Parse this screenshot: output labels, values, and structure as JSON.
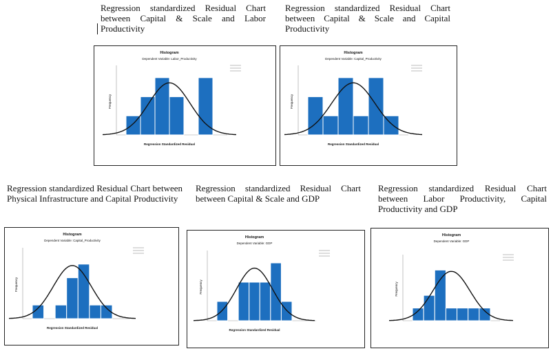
{
  "captions": [
    "Regression standardized Residual Chart between Capital & Scale and Labor Productivity",
    "Regression standardized Residual Chart between Capital & Scale and Capital Productivity",
    "Regression standardized Residual Chart between Physical Infrastructure and Capital Productivity",
    "Regression standardized Residual Chart between Capital & Scale and GDP",
    "Regression standardized Residual Chart between Labor Productivity, Capital Productivity and GDP"
  ],
  "colors": {
    "bar": "#1d6fbf",
    "bar_edge": "#ffffff",
    "curve": "#111111",
    "frame": "#222222"
  },
  "chart_data": [
    {
      "type": "bar",
      "title": "Histogram",
      "subtitle": "Dependent Variable: Labor_Productivity",
      "xlabel": "Regression Standardized Residual",
      "ylabel": "Frequency",
      "values": [
        1,
        2,
        3,
        2,
        0,
        3
      ],
      "ylim": [
        0,
        3.5
      ],
      "normal_curve": true
    },
    {
      "type": "bar",
      "title": "Histogram",
      "subtitle": "Dependent Variable: Capital_Productivity",
      "xlabel": "Regression Standardized Residual",
      "ylabel": "Frequency",
      "values": [
        2,
        1,
        3,
        1,
        3,
        1
      ],
      "ylim": [
        0,
        3.5
      ],
      "normal_curve": true
    },
    {
      "type": "bar",
      "title": "Histogram",
      "subtitle": "Dependent Variable: Capital_Productivity",
      "xlabel": "Regression Standardized Residual",
      "ylabel": "Frequency",
      "values": [
        1,
        0,
        1,
        3,
        4,
        1,
        1
      ],
      "ylim": [
        0,
        5
      ],
      "normal_curve": true
    },
    {
      "type": "bar",
      "title": "Histogram",
      "subtitle": "Dependent Variable: GDP",
      "xlabel": "Regression Standardized Residual",
      "ylabel": "Frequency",
      "values": [
        1,
        0,
        2,
        2,
        2,
        3,
        1
      ],
      "ylim": [
        0,
        3.5
      ],
      "normal_curve": true
    },
    {
      "type": "bar",
      "title": "Histogram",
      "subtitle": "Dependent Variable: GDP",
      "xlabel": "",
      "ylabel": "Frequency",
      "values": [
        1,
        2,
        4,
        1,
        1,
        1,
        1
      ],
      "ylim": [
        0,
        5
      ],
      "normal_curve": true
    }
  ]
}
